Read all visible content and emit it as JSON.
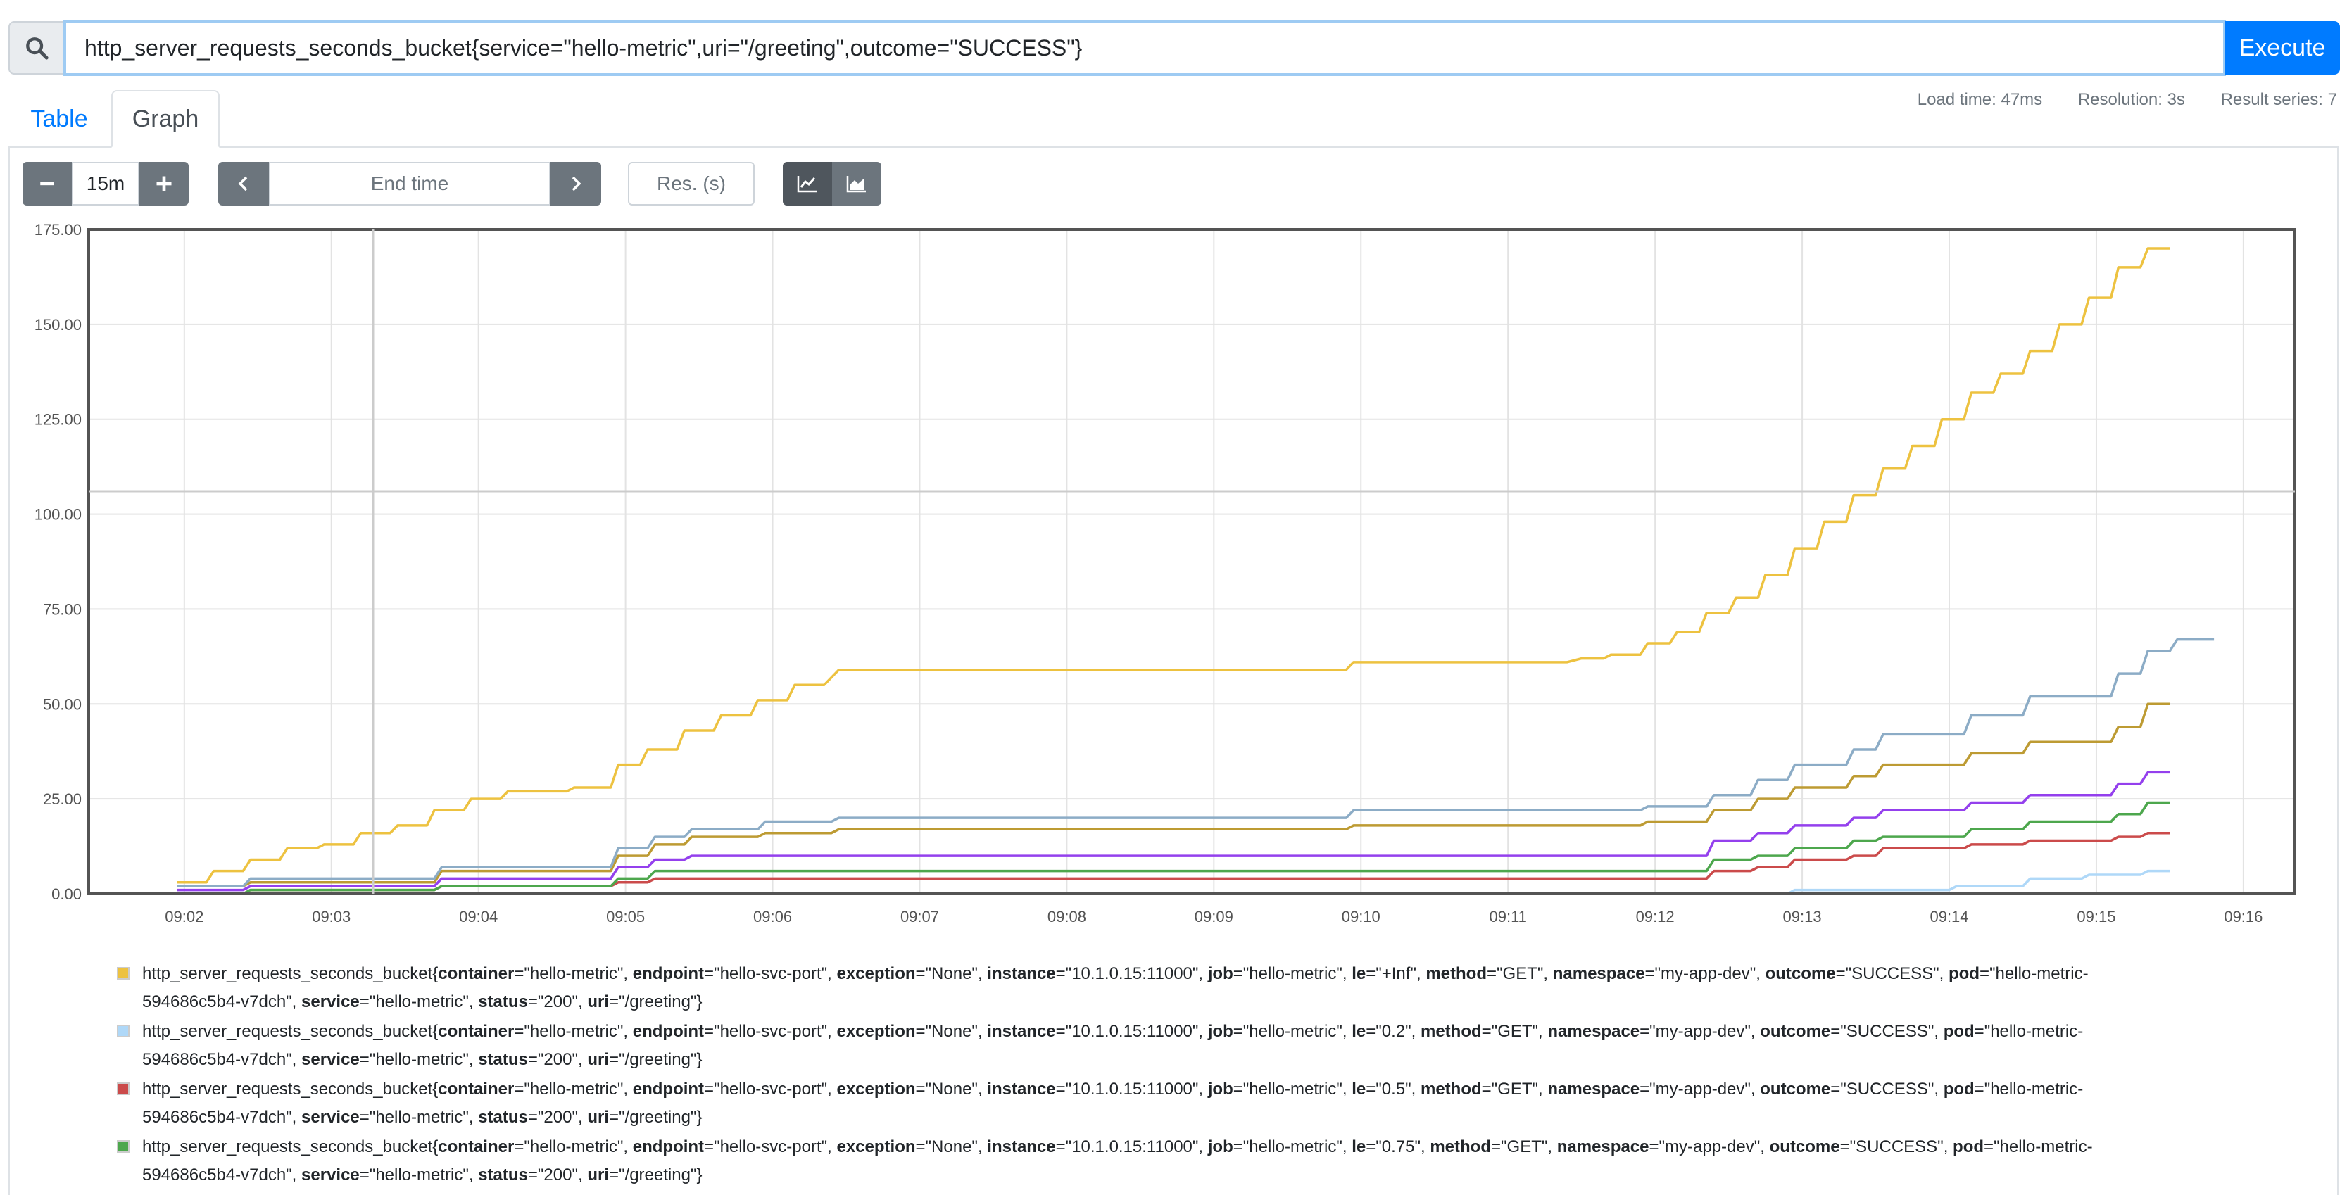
{
  "query": {
    "value": "http_server_requests_seconds_bucket{service=\"hello-metric\",uri=\"/greeting\",outcome=\"SUCCESS\"}",
    "search_icon": "search-icon",
    "execute_label": "Execute"
  },
  "tabs": [
    {
      "label": "Table",
      "active": false
    },
    {
      "label": "Graph",
      "active": true
    }
  ],
  "stats": {
    "load_time": "Load time: 47ms",
    "resolution": "Resolution: 3s",
    "result_series": "Result series: 7"
  },
  "controls": {
    "range_minus_icon": "minus-icon",
    "range_value": "15m",
    "range_plus_icon": "plus-icon",
    "time_back_icon": "chevron-left-icon",
    "end_time_placeholder": "End time",
    "time_forward_icon": "chevron-right-icon",
    "resolution_placeholder": "Res. (s)",
    "stack_off_icon": "line-chart-icon",
    "stack_on_icon": "area-chart-icon"
  },
  "chart_data": {
    "type": "line",
    "ylim": [
      0,
      175
    ],
    "y_ticks": [
      "0.00",
      "25.00",
      "50.00",
      "75.00",
      "100.00",
      "125.00",
      "150.00",
      "175.00"
    ],
    "x_ticks": [
      "09:02",
      "09:03",
      "09:04",
      "09:05",
      "09:06",
      "09:07",
      "09:08",
      "09:09",
      "09:10",
      "09:11",
      "09:12",
      "09:13",
      "09:14",
      "09:15",
      "09:16"
    ],
    "x_tick_minutes": [
      2,
      3,
      4,
      5,
      6,
      7,
      8,
      9,
      10,
      11,
      12,
      13,
      14,
      15,
      16
    ],
    "xlim_minutes": [
      1.35,
      16.35
    ],
    "grid": true,
    "series": [
      {
        "color": "#edc240",
        "points": [
          [
            1.95,
            3
          ],
          [
            2.15,
            3
          ],
          [
            2.2,
            6
          ],
          [
            2.4,
            6
          ],
          [
            2.45,
            9
          ],
          [
            2.65,
            9
          ],
          [
            2.7,
            12
          ],
          [
            2.9,
            12
          ],
          [
            2.95,
            13
          ],
          [
            3.15,
            13
          ],
          [
            3.2,
            16
          ],
          [
            3.4,
            16
          ],
          [
            3.45,
            18
          ],
          [
            3.65,
            18
          ],
          [
            3.7,
            22
          ],
          [
            3.9,
            22
          ],
          [
            3.95,
            25
          ],
          [
            4.15,
            25
          ],
          [
            4.2,
            27
          ],
          [
            4.6,
            27
          ],
          [
            4.65,
            28
          ],
          [
            4.9,
            28
          ],
          [
            4.95,
            34
          ],
          [
            5.1,
            34
          ],
          [
            5.15,
            38
          ],
          [
            5.35,
            38
          ],
          [
            5.4,
            43
          ],
          [
            5.6,
            43
          ],
          [
            5.65,
            47
          ],
          [
            5.85,
            47
          ],
          [
            5.9,
            51
          ],
          [
            6.1,
            51
          ],
          [
            6.15,
            55
          ],
          [
            6.35,
            55
          ],
          [
            6.45,
            59
          ],
          [
            9.9,
            59
          ],
          [
            9.95,
            61
          ],
          [
            11.4,
            61
          ],
          [
            11.5,
            62
          ],
          [
            11.65,
            62
          ],
          [
            11.7,
            63
          ],
          [
            11.9,
            63
          ],
          [
            11.95,
            66
          ],
          [
            12.1,
            66
          ],
          [
            12.15,
            69
          ],
          [
            12.3,
            69
          ],
          [
            12.35,
            74
          ],
          [
            12.5,
            74
          ],
          [
            12.55,
            78
          ],
          [
            12.7,
            78
          ],
          [
            12.75,
            84
          ],
          [
            12.9,
            84
          ],
          [
            12.95,
            91
          ],
          [
            13.1,
            91
          ],
          [
            13.15,
            98
          ],
          [
            13.3,
            98
          ],
          [
            13.35,
            105
          ],
          [
            13.5,
            105
          ],
          [
            13.55,
            112
          ],
          [
            13.7,
            112
          ],
          [
            13.75,
            118
          ],
          [
            13.9,
            118
          ],
          [
            13.95,
            125
          ],
          [
            14.1,
            125
          ],
          [
            14.15,
            132
          ],
          [
            14.3,
            132
          ],
          [
            14.35,
            137
          ],
          [
            14.5,
            137
          ],
          [
            14.55,
            143
          ],
          [
            14.7,
            143
          ],
          [
            14.75,
            150
          ],
          [
            14.9,
            150
          ],
          [
            14.95,
            157
          ],
          [
            15.1,
            157
          ],
          [
            15.15,
            165
          ],
          [
            15.3,
            165
          ],
          [
            15.35,
            170
          ],
          [
            15.5,
            170
          ]
        ]
      },
      {
        "color": "#afd8f8",
        "points": [
          [
            1.95,
            0
          ],
          [
            12.9,
            0
          ],
          [
            12.95,
            1
          ],
          [
            14.0,
            1
          ],
          [
            14.05,
            2
          ],
          [
            14.5,
            2
          ],
          [
            14.55,
            4
          ],
          [
            14.9,
            4
          ],
          [
            14.95,
            5
          ],
          [
            15.3,
            5
          ],
          [
            15.35,
            6
          ],
          [
            15.5,
            6
          ]
        ]
      },
      {
        "color": "#cb4b4b",
        "points": [
          [
            1.95,
            0
          ],
          [
            2.4,
            0
          ],
          [
            2.45,
            1
          ],
          [
            3.7,
            1
          ],
          [
            3.75,
            2
          ],
          [
            4.9,
            2
          ],
          [
            4.95,
            3
          ],
          [
            5.15,
            3
          ],
          [
            5.2,
            4
          ],
          [
            12.35,
            4
          ],
          [
            12.4,
            6
          ],
          [
            12.65,
            6
          ],
          [
            12.7,
            7
          ],
          [
            12.9,
            7
          ],
          [
            12.95,
            9
          ],
          [
            13.3,
            9
          ],
          [
            13.35,
            10
          ],
          [
            13.5,
            10
          ],
          [
            13.55,
            12
          ],
          [
            14.1,
            12
          ],
          [
            14.15,
            13
          ],
          [
            14.5,
            13
          ],
          [
            14.55,
            14
          ],
          [
            15.1,
            14
          ],
          [
            15.15,
            15
          ],
          [
            15.3,
            15
          ],
          [
            15.35,
            16
          ],
          [
            15.5,
            16
          ]
        ]
      },
      {
        "color": "#4da74d",
        "points": [
          [
            1.95,
            0
          ],
          [
            2.4,
            0
          ],
          [
            2.45,
            1
          ],
          [
            3.7,
            1
          ],
          [
            3.75,
            2
          ],
          [
            4.9,
            2
          ],
          [
            4.95,
            4
          ],
          [
            5.15,
            4
          ],
          [
            5.2,
            6
          ],
          [
            12.35,
            6
          ],
          [
            12.4,
            9
          ],
          [
            12.65,
            9
          ],
          [
            12.7,
            10
          ],
          [
            12.9,
            10
          ],
          [
            12.95,
            12
          ],
          [
            13.3,
            12
          ],
          [
            13.35,
            14
          ],
          [
            13.5,
            14
          ],
          [
            13.55,
            15
          ],
          [
            14.1,
            15
          ],
          [
            14.15,
            17
          ],
          [
            14.5,
            17
          ],
          [
            14.55,
            19
          ],
          [
            15.1,
            19
          ],
          [
            15.15,
            21
          ],
          [
            15.3,
            21
          ],
          [
            15.35,
            24
          ],
          [
            15.5,
            24
          ]
        ]
      },
      {
        "color": "#9440ed",
        "points": [
          [
            1.95,
            1
          ],
          [
            2.4,
            1
          ],
          [
            2.45,
            2
          ],
          [
            3.7,
            2
          ],
          [
            3.75,
            4
          ],
          [
            4.9,
            4
          ],
          [
            4.95,
            7
          ],
          [
            5.15,
            7
          ],
          [
            5.2,
            9
          ],
          [
            5.4,
            9
          ],
          [
            5.45,
            10
          ],
          [
            12.35,
            10
          ],
          [
            12.4,
            14
          ],
          [
            12.65,
            14
          ],
          [
            12.7,
            16
          ],
          [
            12.9,
            16
          ],
          [
            12.95,
            18
          ],
          [
            13.3,
            18
          ],
          [
            13.35,
            20
          ],
          [
            13.5,
            20
          ],
          [
            13.55,
            22
          ],
          [
            14.1,
            22
          ],
          [
            14.15,
            24
          ],
          [
            14.5,
            24
          ],
          [
            14.55,
            26
          ],
          [
            15.1,
            26
          ],
          [
            15.15,
            29
          ],
          [
            15.3,
            29
          ],
          [
            15.35,
            32
          ],
          [
            15.5,
            32
          ]
        ]
      },
      {
        "color": "#bd9b33",
        "points": [
          [
            1.95,
            2
          ],
          [
            2.4,
            2
          ],
          [
            2.45,
            3
          ],
          [
            3.7,
            3
          ],
          [
            3.75,
            6
          ],
          [
            4.9,
            6
          ],
          [
            4.95,
            10
          ],
          [
            5.15,
            10
          ],
          [
            5.2,
            13
          ],
          [
            5.4,
            13
          ],
          [
            5.45,
            15
          ],
          [
            5.9,
            15
          ],
          [
            5.95,
            16
          ],
          [
            6.4,
            16
          ],
          [
            6.45,
            17
          ],
          [
            9.9,
            17
          ],
          [
            9.95,
            18
          ],
          [
            11.9,
            18
          ],
          [
            11.95,
            19
          ],
          [
            12.35,
            19
          ],
          [
            12.4,
            22
          ],
          [
            12.65,
            22
          ],
          [
            12.7,
            25
          ],
          [
            12.9,
            25
          ],
          [
            12.95,
            28
          ],
          [
            13.3,
            28
          ],
          [
            13.35,
            31
          ],
          [
            13.5,
            31
          ],
          [
            13.55,
            34
          ],
          [
            14.1,
            34
          ],
          [
            14.15,
            37
          ],
          [
            14.5,
            37
          ],
          [
            14.55,
            40
          ],
          [
            15.1,
            40
          ],
          [
            15.15,
            44
          ],
          [
            15.3,
            44
          ],
          [
            15.35,
            50
          ],
          [
            15.5,
            50
          ]
        ]
      },
      {
        "color": "#8cacc6",
        "points": [
          [
            1.95,
            2
          ],
          [
            2.4,
            2
          ],
          [
            2.45,
            4
          ],
          [
            3.7,
            4
          ],
          [
            3.75,
            7
          ],
          [
            4.9,
            7
          ],
          [
            4.95,
            12
          ],
          [
            5.15,
            12
          ],
          [
            5.2,
            15
          ],
          [
            5.4,
            15
          ],
          [
            5.45,
            17
          ],
          [
            5.9,
            17
          ],
          [
            5.95,
            19
          ],
          [
            6.4,
            19
          ],
          [
            6.45,
            20
          ],
          [
            9.9,
            20
          ],
          [
            9.95,
            22
          ],
          [
            11.9,
            22
          ],
          [
            11.95,
            23
          ],
          [
            12.35,
            23
          ],
          [
            12.4,
            26
          ],
          [
            12.65,
            26
          ],
          [
            12.7,
            30
          ],
          [
            12.9,
            30
          ],
          [
            12.95,
            34
          ],
          [
            13.3,
            34
          ],
          [
            13.35,
            38
          ],
          [
            13.5,
            38
          ],
          [
            13.55,
            42
          ],
          [
            14.1,
            42
          ],
          [
            14.15,
            47
          ],
          [
            14.5,
            47
          ],
          [
            14.55,
            52
          ],
          [
            15.1,
            52
          ],
          [
            15.15,
            58
          ],
          [
            15.3,
            58
          ],
          [
            15.35,
            64
          ],
          [
            15.5,
            64
          ],
          [
            15.55,
            67
          ],
          [
            15.8,
            67
          ]
        ]
      }
    ]
  },
  "legend": [
    {
      "color": "#edc240",
      "prefix": "http_server_requests_seconds_bucket{",
      "le": "+Inf"
    },
    {
      "color": "#afd8f8",
      "prefix": "http_server_requests_seconds_bucket{",
      "le": "0.2"
    },
    {
      "color": "#cb4b4b",
      "prefix": "http_server_requests_seconds_bucket{",
      "le": "0.5"
    },
    {
      "color": "#4da74d",
      "prefix": "http_server_requests_seconds_bucket{",
      "le": "0.75"
    }
  ],
  "legend_labels": {
    "container": "container",
    "container_v": "=\"hello-metric\", ",
    "endpoint": "endpoint",
    "endpoint_v": "=\"hello-svc-port\", ",
    "exception": "exception",
    "exception_v": "=\"None\", ",
    "instance": "instance",
    "instance_v": "=\"10.1.0.15:11000\", ",
    "job": "job",
    "job_v": "=\"hello-metric\", ",
    "le": "le",
    "method": "method",
    "method_v": "=\"GET\", ",
    "namespace": "namespace",
    "namespace_v": "=\"my-app-dev\", ",
    "outcome": "outcome",
    "outcome_v": "=\"SUCCESS\", ",
    "pod": "pod",
    "pod_v": "=\"hello-metric-",
    "pod_v2": "594686c5b4-v7dch\", ",
    "service": "service",
    "service_v": "=\"hello-metric\", ",
    "status": "status",
    "status_v": "=\"200\", ",
    "uri": "uri",
    "uri_v": "=\"/greeting\"}"
  }
}
